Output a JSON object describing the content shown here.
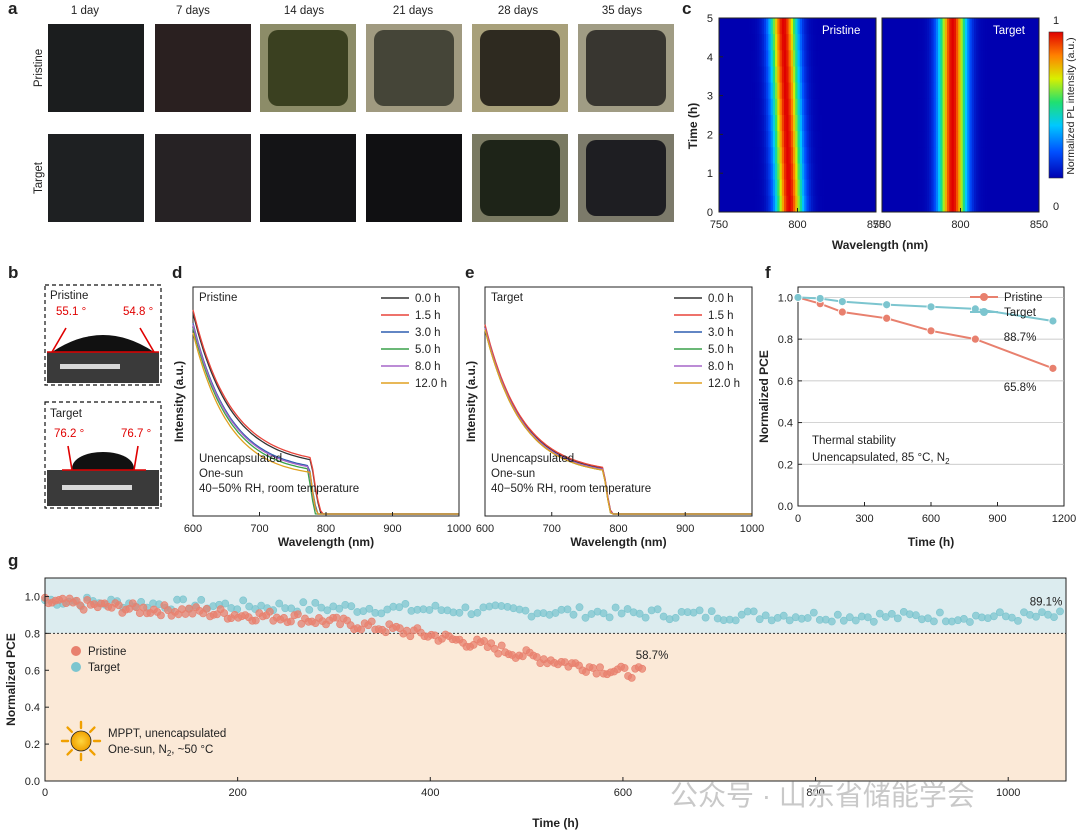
{
  "panel_letters": {
    "a": "a",
    "b": "b",
    "c": "c",
    "d": "d",
    "e": "e",
    "f": "f",
    "g": "g"
  },
  "panel_a": {
    "columns": [
      "1 day",
      "7 days",
      "14 days",
      "21 days",
      "28 days",
      "35 days"
    ],
    "rows": [
      "Pristine",
      "Target"
    ]
  },
  "panel_b": {
    "pristine": {
      "label": "Pristine",
      "angle_left": "55.1 °",
      "angle_right": "54.8 °"
    },
    "target": {
      "label": "Target",
      "angle_left": "76.2 °",
      "angle_right": "76.7 °"
    }
  },
  "watermark": "公众号 · 山东省储能学会",
  "chart_data": [
    {
      "id": "c",
      "type": "heatmap",
      "panels": [
        "Pristine",
        "Target"
      ],
      "xlabel": "Wavelength (nm)",
      "ylabel": "Time (h)",
      "xlim": [
        750,
        850
      ],
      "ylim": [
        0,
        5
      ],
      "xticks": [
        750,
        800,
        850
      ],
      "yticks": [
        0,
        1,
        2,
        3,
        4,
        5
      ],
      "peak_nm": [
        {
          "time": 0,
          "nm": 795
        },
        {
          "time": 5,
          "nm": 791
        }
      ],
      "target_peak_nm": 795,
      "colorbar": {
        "label": "Normalized PL intensity (a.u.)",
        "min": "0",
        "max": "1"
      }
    },
    {
      "id": "d",
      "type": "line",
      "title": "Pristine",
      "xlabel": "Wavelength (nm)",
      "ylabel": "Intensity (a.u.)",
      "xlim": [
        600,
        1000
      ],
      "xticks": [
        600,
        700,
        800,
        900,
        1000
      ],
      "series": [
        {
          "name": "0.0 h",
          "color": "#333333"
        },
        {
          "name": "1.5 h",
          "color": "#e8443a"
        },
        {
          "name": "3.0 h",
          "color": "#2f5fb0"
        },
        {
          "name": "5.0 h",
          "color": "#3aa14a"
        },
        {
          "name": "8.0 h",
          "color": "#a566c8"
        },
        {
          "name": "12.0 h",
          "color": "#e0a020"
        }
      ],
      "annotation": [
        "Unencapsulated",
        "One-sun",
        "40−50% RH, room temperature"
      ]
    },
    {
      "id": "e",
      "type": "line",
      "title": "Target",
      "xlabel": "Wavelength (nm)",
      "ylabel": "Intensity (a.u.)",
      "xlim": [
        600,
        1000
      ],
      "xticks": [
        600,
        700,
        800,
        900,
        1000
      ],
      "series": [
        {
          "name": "0.0 h",
          "color": "#333333"
        },
        {
          "name": "1.5 h",
          "color": "#e8443a"
        },
        {
          "name": "3.0 h",
          "color": "#2f5fb0"
        },
        {
          "name": "5.0 h",
          "color": "#3aa14a"
        },
        {
          "name": "8.0 h",
          "color": "#a566c8"
        },
        {
          "name": "12.0 h",
          "color": "#e0a020"
        }
      ],
      "annotation": [
        "Unencapsulated",
        "One-sun",
        "40−50% RH, room temperature"
      ]
    },
    {
      "id": "f",
      "type": "line",
      "xlabel": "Time (h)",
      "ylabel": "Normalized PCE",
      "xlim": [
        0,
        1200
      ],
      "ylim": [
        0.0,
        1.05
      ],
      "xticks": [
        0,
        300,
        600,
        900,
        1200
      ],
      "yticks": [
        0.0,
        0.2,
        0.4,
        0.6,
        0.8,
        1.0
      ],
      "series": [
        {
          "name": "Pristine",
          "color": "#e8806e",
          "x": [
            0,
            100,
            200,
            400,
            600,
            800,
            1150
          ],
          "y": [
            1.0,
            0.97,
            0.93,
            0.9,
            0.84,
            0.8,
            0.66
          ]
        },
        {
          "name": "Target",
          "color": "#7cc5cf",
          "x": [
            0,
            100,
            200,
            400,
            600,
            800,
            1150
          ],
          "y": [
            1.0,
            0.995,
            0.98,
            0.965,
            0.955,
            0.945,
            0.887
          ]
        }
      ],
      "end_labels": [
        "88.7%",
        "65.8%"
      ],
      "annotation": [
        "Thermal stability",
        "Unencapsulated, 85 °C, N",
        "2"
      ]
    },
    {
      "id": "g",
      "type": "scatter",
      "xlabel": "Time (h)",
      "ylabel": "Normalized PCE",
      "xlim": [
        0,
        1060
      ],
      "ylim": [
        0.0,
        1.1
      ],
      "xticks": [
        0,
        200,
        400,
        600,
        800,
        1000
      ],
      "yticks": [
        0.0,
        0.2,
        0.4,
        0.6,
        0.8,
        1.0
      ],
      "threshold": 0.8,
      "series": [
        {
          "name": "Pristine",
          "color": "#e8806e",
          "x": [
            0,
            50,
            100,
            150,
            200,
            250,
            300,
            350,
            400,
            450,
            500,
            550,
            600,
            620
          ],
          "y": [
            0.97,
            0.95,
            0.93,
            0.92,
            0.9,
            0.89,
            0.86,
            0.83,
            0.79,
            0.74,
            0.68,
            0.63,
            0.59,
            0.587
          ]
        },
        {
          "name": "Target",
          "color": "#7cc5cf",
          "x": [
            0,
            100,
            200,
            300,
            400,
            500,
            600,
            700,
            800,
            900,
            1000,
            1060
          ],
          "y": [
            0.98,
            0.96,
            0.95,
            0.94,
            0.93,
            0.92,
            0.91,
            0.9,
            0.895,
            0.89,
            0.89,
            0.891
          ]
        }
      ],
      "end_labels": [
        "89.1%",
        "58.7%"
      ],
      "annotation": [
        "MPPT, unencapsulated",
        "One-sun, N",
        "2",
        ", ~50 °C"
      ]
    }
  ]
}
